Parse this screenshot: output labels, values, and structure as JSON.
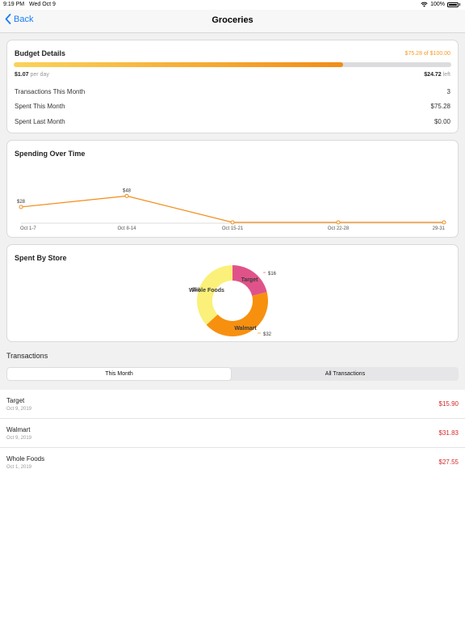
{
  "status_bar": {
    "time": "9:19 PM",
    "date": "Wed Oct 9",
    "battery": "100%"
  },
  "nav": {
    "back_label": "Back",
    "title": "Groceries"
  },
  "budget": {
    "title": "Budget Details",
    "amount_text": "$75.28 of $100.00",
    "progress": 0.7528,
    "per_day_value": "$1.07",
    "per_day_suffix": "per day",
    "left_value": "$24.72",
    "left_suffix": "left",
    "rows": [
      {
        "label": "Transactions This Month",
        "value": "3"
      },
      {
        "label": "Spent This Month",
        "value": "$75.28"
      },
      {
        "label": "Spent Last Month",
        "value": "$0.00"
      }
    ],
    "colors": {
      "bar_start": "#fad35a",
      "bar_end": "#f28c18",
      "amount": "#f39c27"
    }
  },
  "spending": {
    "title": "Spending Over Time"
  },
  "stores": {
    "title": "Spent By Store"
  },
  "chart_data": [
    {
      "type": "line",
      "title": "Spending Over Time",
      "categories": [
        "Oct 1-7",
        "Oct 8-14",
        "Oct 15-21",
        "Oct 22-28",
        "29-31"
      ],
      "values": [
        28,
        48,
        0,
        0,
        0
      ],
      "point_labels": [
        "$28",
        "$48",
        "",
        "",
        ""
      ],
      "ylim": [
        0,
        50
      ],
      "color": "#f28c18"
    },
    {
      "type": "pie",
      "title": "Spent By Store",
      "labels": [
        "Target",
        "Walmart",
        "Whole Foods"
      ],
      "values": [
        16,
        32,
        28
      ],
      "value_labels": [
        "$16",
        "$32",
        "$28"
      ],
      "colors": [
        "#e0538a",
        "#f7900f",
        "#fbf079"
      ]
    }
  ],
  "transactions": {
    "title": "Transactions",
    "tabs": [
      {
        "label": "This Month",
        "active": true
      },
      {
        "label": "All Transactions",
        "active": false
      }
    ],
    "items": [
      {
        "name": "Target",
        "date": "Oct 9, 2019",
        "amount": "$15.90"
      },
      {
        "name": "Walmart",
        "date": "Oct 9, 2019",
        "amount": "$31.83"
      },
      {
        "name": "Whole Foods",
        "date": "Oct 1, 2019",
        "amount": "$27.55"
      }
    ]
  }
}
